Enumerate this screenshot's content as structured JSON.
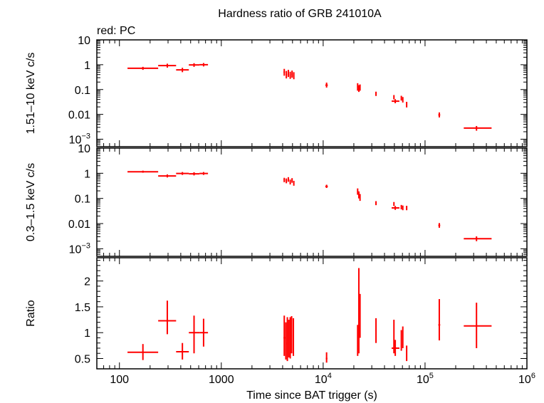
{
  "title": "Hardness ratio of GRB 241010A",
  "subtitle": "red: PC",
  "xlabel": "Time since BAT trigger (s)",
  "colors": {
    "series": "#ff0000",
    "axes": "#000000"
  },
  "chart_data": [
    {
      "type": "scatter",
      "panel": "hard",
      "ylabel": "1.51–10 keV c/s",
      "xscale": "log",
      "yscale": "log",
      "xlim": [
        60,
        1000000
      ],
      "ylim": [
        0.0005,
        10
      ],
      "yticks": [
        {
          "v": 10,
          "label": "10"
        },
        {
          "v": 1,
          "label": "1"
        },
        {
          "v": 0.1,
          "label": "0.1"
        },
        {
          "v": 0.01,
          "label": "0.01"
        },
        {
          "v": 0.001,
          "base": "10",
          "exp": "−3"
        }
      ],
      "points": [
        {
          "x": 170,
          "xlo": 120,
          "xhi": 240,
          "y": 0.72,
          "ylo": 0.62,
          "yhi": 0.82
        },
        {
          "x": 295,
          "xlo": 240,
          "xhi": 360,
          "y": 0.92,
          "ylo": 0.76,
          "yhi": 1.1
        },
        {
          "x": 415,
          "xlo": 360,
          "xhi": 480,
          "y": 0.62,
          "ylo": 0.5,
          "yhi": 0.75
        },
        {
          "x": 540,
          "xlo": 480,
          "xhi": 610,
          "y": 0.98,
          "ylo": 0.82,
          "yhi": 1.15
        },
        {
          "x": 670,
          "xlo": 610,
          "xhi": 740,
          "y": 1.0,
          "ylo": 0.85,
          "yhi": 1.17
        },
        {
          "x": 4150,
          "xlo": 4080,
          "xhi": 4220,
          "y": 0.5,
          "ylo": 0.36,
          "yhi": 0.68
        },
        {
          "x": 4350,
          "xlo": 4280,
          "xhi": 4420,
          "y": 0.4,
          "ylo": 0.28,
          "yhi": 0.56
        },
        {
          "x": 4550,
          "xlo": 4480,
          "xhi": 4620,
          "y": 0.45,
          "ylo": 0.32,
          "yhi": 0.62
        },
        {
          "x": 4750,
          "xlo": 4680,
          "xhi": 4820,
          "y": 0.38,
          "ylo": 0.27,
          "yhi": 0.52
        },
        {
          "x": 4950,
          "xlo": 4880,
          "xhi": 5020,
          "y": 0.42,
          "ylo": 0.3,
          "yhi": 0.58
        },
        {
          "x": 5150,
          "xlo": 5080,
          "xhi": 5220,
          "y": 0.36,
          "ylo": 0.26,
          "yhi": 0.5
        },
        {
          "x": 10800,
          "xlo": 10500,
          "xhi": 11100,
          "y": 0.15,
          "ylo": 0.12,
          "yhi": 0.19
        },
        {
          "x": 21800,
          "xlo": 21500,
          "xhi": 22100,
          "y": 0.13,
          "ylo": 0.09,
          "yhi": 0.18
        },
        {
          "x": 22400,
          "xlo": 22100,
          "xhi": 22700,
          "y": 0.11,
          "ylo": 0.08,
          "yhi": 0.15
        },
        {
          "x": 23000,
          "xlo": 22700,
          "xhi": 23300,
          "y": 0.12,
          "ylo": 0.09,
          "yhi": 0.16
        },
        {
          "x": 33000,
          "xlo": 32500,
          "xhi": 33500,
          "y": 0.068,
          "ylo": 0.055,
          "yhi": 0.082
        },
        {
          "x": 51000,
          "xlo": 47000,
          "xhi": 56000,
          "y": 0.034,
          "ylo": 0.028,
          "yhi": 0.041
        },
        {
          "x": 49500,
          "xlo": 49000,
          "xhi": 50000,
          "y": 0.05,
          "ylo": 0.04,
          "yhi": 0.06
        },
        {
          "x": 58500,
          "xlo": 58000,
          "xhi": 59000,
          "y": 0.045,
          "ylo": 0.036,
          "yhi": 0.056
        },
        {
          "x": 60500,
          "xlo": 60000,
          "xhi": 61000,
          "y": 0.04,
          "ylo": 0.03,
          "yhi": 0.05
        },
        {
          "x": 66000,
          "xlo": 65500,
          "xhi": 66500,
          "y": 0.025,
          "ylo": 0.019,
          "yhi": 0.032
        },
        {
          "x": 138000,
          "xlo": 135000,
          "xhi": 141000,
          "y": 0.0095,
          "ylo": 0.0075,
          "yhi": 0.012
        },
        {
          "x": 320000,
          "xlo": 240000,
          "xhi": 450000,
          "y": 0.0028,
          "ylo": 0.0022,
          "yhi": 0.0034
        }
      ]
    },
    {
      "type": "scatter",
      "panel": "soft",
      "ylabel": "0.3–1.5 keV c/s",
      "xscale": "log",
      "yscale": "log",
      "xlim": [
        60,
        1000000
      ],
      "ylim": [
        0.0005,
        10
      ],
      "yticks": [
        {
          "v": 10,
          "label": "10"
        },
        {
          "v": 1,
          "label": "1"
        },
        {
          "v": 0.1,
          "label": "0.1"
        },
        {
          "v": 0.01,
          "label": "0.01"
        },
        {
          "v": 0.001,
          "base": "10",
          "exp": "−3"
        }
      ],
      "points": [
        {
          "x": 170,
          "xlo": 120,
          "xhi": 240,
          "y": 1.15,
          "ylo": 1.05,
          "yhi": 1.27
        },
        {
          "x": 295,
          "xlo": 240,
          "xhi": 360,
          "y": 0.78,
          "ylo": 0.68,
          "yhi": 0.9
        },
        {
          "x": 415,
          "xlo": 360,
          "xhi": 480,
          "y": 0.98,
          "ylo": 0.86,
          "yhi": 1.12
        },
        {
          "x": 540,
          "xlo": 480,
          "xhi": 610,
          "y": 0.95,
          "ylo": 0.82,
          "yhi": 1.1
        },
        {
          "x": 670,
          "xlo": 610,
          "xhi": 740,
          "y": 0.98,
          "ylo": 0.86,
          "yhi": 1.12
        },
        {
          "x": 4150,
          "xlo": 4080,
          "xhi": 4220,
          "y": 0.55,
          "ylo": 0.44,
          "yhi": 0.66
        },
        {
          "x": 4350,
          "xlo": 4280,
          "xhi": 4420,
          "y": 0.5,
          "ylo": 0.4,
          "yhi": 0.62
        },
        {
          "x": 4550,
          "xlo": 4480,
          "xhi": 4620,
          "y": 0.58,
          "ylo": 0.46,
          "yhi": 0.7
        },
        {
          "x": 4750,
          "xlo": 4680,
          "xhi": 4820,
          "y": 0.45,
          "ylo": 0.36,
          "yhi": 0.56
        },
        {
          "x": 4950,
          "xlo": 4880,
          "xhi": 5020,
          "y": 0.52,
          "ylo": 0.42,
          "yhi": 0.64
        },
        {
          "x": 5150,
          "xlo": 5080,
          "xhi": 5220,
          "y": 0.4,
          "ylo": 0.32,
          "yhi": 0.5
        },
        {
          "x": 10800,
          "xlo": 10500,
          "xhi": 11100,
          "y": 0.3,
          "ylo": 0.26,
          "yhi": 0.35
        },
        {
          "x": 21800,
          "xlo": 21500,
          "xhi": 22100,
          "y": 0.19,
          "ylo": 0.14,
          "yhi": 0.25
        },
        {
          "x": 22400,
          "xlo": 22100,
          "xhi": 22700,
          "y": 0.14,
          "ylo": 0.1,
          "yhi": 0.19
        },
        {
          "x": 23000,
          "xlo": 22700,
          "xhi": 23300,
          "y": 0.11,
          "ylo": 0.08,
          "yhi": 0.15
        },
        {
          "x": 33000,
          "xlo": 32500,
          "xhi": 33500,
          "y": 0.065,
          "ylo": 0.054,
          "yhi": 0.078
        },
        {
          "x": 51000,
          "xlo": 47000,
          "xhi": 56000,
          "y": 0.042,
          "ylo": 0.035,
          "yhi": 0.05
        },
        {
          "x": 49500,
          "xlo": 49000,
          "xhi": 50000,
          "y": 0.06,
          "ylo": 0.05,
          "yhi": 0.072
        },
        {
          "x": 58500,
          "xlo": 58000,
          "xhi": 59000,
          "y": 0.045,
          "ylo": 0.037,
          "yhi": 0.055
        },
        {
          "x": 60500,
          "xlo": 60000,
          "xhi": 61000,
          "y": 0.042,
          "ylo": 0.034,
          "yhi": 0.052
        },
        {
          "x": 66000,
          "xlo": 65500,
          "xhi": 66500,
          "y": 0.042,
          "ylo": 0.034,
          "yhi": 0.051
        },
        {
          "x": 138000,
          "xlo": 135000,
          "xhi": 141000,
          "y": 0.0085,
          "ylo": 0.0068,
          "yhi": 0.0105
        },
        {
          "x": 320000,
          "xlo": 240000,
          "xhi": 450000,
          "y": 0.0025,
          "ylo": 0.002,
          "yhi": 0.0031
        }
      ]
    },
    {
      "type": "scatter",
      "panel": "ratio",
      "ylabel": "Ratio",
      "xscale": "log",
      "yscale": "linear",
      "xlim": [
        60,
        1000000
      ],
      "ylim": [
        0.3,
        2.45
      ],
      "yticks": [
        {
          "v": 0.5,
          "label": "0.5"
        },
        {
          "v": 1,
          "label": "1"
        },
        {
          "v": 1.5,
          "label": "1.5"
        },
        {
          "v": 2,
          "label": "2"
        }
      ],
      "xticks": [
        {
          "v": 100,
          "label": "100"
        },
        {
          "v": 1000,
          "label": "1000"
        },
        {
          "v": 10000,
          "base": "10",
          "exp": "4"
        },
        {
          "v": 100000,
          "base": "10",
          "exp": "5"
        },
        {
          "v": 1000000,
          "base": "10",
          "exp": "6"
        }
      ],
      "points": [
        {
          "x": 170,
          "xlo": 120,
          "xhi": 240,
          "y": 0.62,
          "ylo": 0.47,
          "yhi": 0.78
        },
        {
          "x": 295,
          "xlo": 240,
          "xhi": 360,
          "y": 1.23,
          "ylo": 0.97,
          "yhi": 1.62
        },
        {
          "x": 415,
          "xlo": 360,
          "xhi": 480,
          "y": 0.63,
          "ylo": 0.48,
          "yhi": 0.8
        },
        {
          "x": 540,
          "xlo": 480,
          "xhi": 610,
          "y": 1.0,
          "ylo": 0.6,
          "yhi": 1.33
        },
        {
          "x": 670,
          "xlo": 610,
          "xhi": 740,
          "y": 1.0,
          "ylo": 0.73,
          "yhi": 1.27
        },
        {
          "x": 4150,
          "xlo": 4080,
          "xhi": 4220,
          "y": 0.9,
          "ylo": 0.55,
          "yhi": 1.33
        },
        {
          "x": 4300,
          "xlo": 4250,
          "xhi": 4350,
          "y": 0.8,
          "ylo": 0.48,
          "yhi": 1.2
        },
        {
          "x": 4450,
          "xlo": 4400,
          "xhi": 4500,
          "y": 0.78,
          "ylo": 0.45,
          "yhi": 1.3
        },
        {
          "x": 4600,
          "xlo": 4550,
          "xhi": 4650,
          "y": 0.85,
          "ylo": 0.52,
          "yhi": 1.25
        },
        {
          "x": 4750,
          "xlo": 4700,
          "xhi": 4800,
          "y": 0.9,
          "ylo": 0.5,
          "yhi": 1.3
        },
        {
          "x": 4900,
          "xlo": 4850,
          "xhi": 4950,
          "y": 0.95,
          "ylo": 0.6,
          "yhi": 1.32
        },
        {
          "x": 5100,
          "xlo": 5050,
          "xhi": 5150,
          "y": 0.9,
          "ylo": 0.55,
          "yhi": 1.28
        },
        {
          "x": 10800,
          "xlo": 10600,
          "xhi": 11000,
          "y": 0.5,
          "ylo": 0.42,
          "yhi": 0.62
        },
        {
          "x": 21800,
          "xlo": 21600,
          "xhi": 22000,
          "y": 0.75,
          "ylo": 0.55,
          "yhi": 1.15
        },
        {
          "x": 22400,
          "xlo": 22200,
          "xhi": 22600,
          "y": 1.1,
          "ylo": 0.6,
          "yhi": 2.25
        },
        {
          "x": 23000,
          "xlo": 22800,
          "xhi": 23200,
          "y": 1.3,
          "ylo": 0.9,
          "yhi": 1.75
        },
        {
          "x": 33000,
          "xlo": 32600,
          "xhi": 33400,
          "y": 1.05,
          "ylo": 0.8,
          "yhi": 1.28
        },
        {
          "x": 49500,
          "xlo": 49100,
          "xhi": 49900,
          "y": 1.0,
          "ylo": 0.6,
          "yhi": 1.25
        },
        {
          "x": 51000,
          "xlo": 47000,
          "xhi": 56000,
          "y": 0.7,
          "ylo": 0.55,
          "yhi": 0.86
        },
        {
          "x": 58500,
          "xlo": 58100,
          "xhi": 58900,
          "y": 0.85,
          "ylo": 0.65,
          "yhi": 1.05
        },
        {
          "x": 60500,
          "xlo": 60100,
          "xhi": 60900,
          "y": 0.95,
          "ylo": 0.7,
          "yhi": 1.12
        },
        {
          "x": 66000,
          "xlo": 65600,
          "xhi": 66400,
          "y": 0.6,
          "ylo": 0.45,
          "yhi": 0.75
        },
        {
          "x": 138000,
          "xlo": 135000,
          "xhi": 141000,
          "y": 1.15,
          "ylo": 0.85,
          "yhi": 1.65
        },
        {
          "x": 320000,
          "xlo": 240000,
          "xhi": 450000,
          "y": 1.13,
          "ylo": 0.7,
          "yhi": 1.58
        }
      ]
    }
  ]
}
